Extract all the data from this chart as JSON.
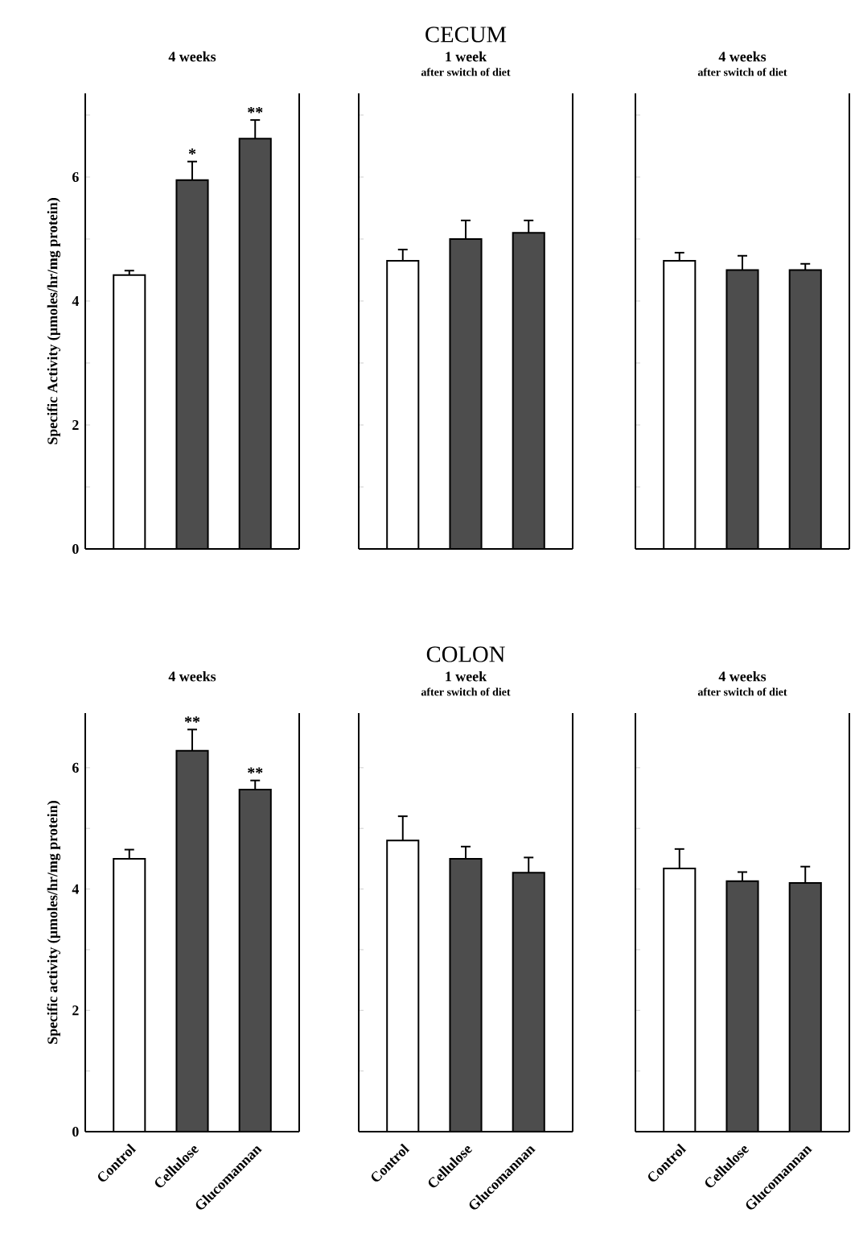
{
  "chart_data": [
    {
      "type": "bar",
      "title": "4 weeks",
      "ylabel": "Specific Activity (µmoles/hr/mg protein)",
      "categories": [
        "Control",
        "Cellulose",
        "Glucomannan"
      ],
      "values": [
        4.42,
        5.95,
        6.62
      ],
      "errors": [
        0.07,
        0.3,
        0.3
      ],
      "colors": [
        "#ffffff",
        "#4d4d4d",
        "#4d4d4d"
      ],
      "ylim": [
        0,
        7.35
      ],
      "yticks": [
        0,
        {
          "value": 1,
          "label": null
        },
        2,
        {
          "value": 3,
          "label": null
        },
        4,
        {
          "value": 5,
          "label": null
        },
        6,
        {
          "value": 7,
          "label": null
        }
      ],
      "tick_labels": "y",
      "annotations": [
        {
          "text": "*",
          "x": "Cellulose",
          "y": 6.25
        },
        {
          "text": "**",
          "x": "Glucomannan",
          "y": 6.92
        }
      ]
    },
    {
      "type": "bar",
      "title": "1 week",
      "subtitle": "after switch of diet",
      "categories": [
        "Control",
        "Cellulose",
        "Glucomannan"
      ],
      "values": [
        4.65,
        5.0,
        5.1
      ],
      "errors": [
        0.18,
        0.3,
        0.2
      ],
      "colors": [
        "#ffffff",
        "#4d4d4d",
        "#4d4d4d"
      ],
      "ylim": [
        0,
        7.35
      ],
      "yticks": [
        0,
        {
          "value": 1,
          "label": null
        },
        2,
        {
          "value": 3,
          "label": null
        },
        4,
        {
          "value": 5,
          "label": null
        },
        6,
        {
          "value": 7,
          "label": null
        }
      ],
      "tick_labels": false,
      "annotations": [
        "CECUM"
      ]
    },
    {
      "type": "bar",
      "title": "4 weeks",
      "subtitle": "after switch of diet",
      "categories": [
        "Control",
        "Cellulose",
        "Glucomannan"
      ],
      "values": [
        4.65,
        4.5,
        4.5
      ],
      "errors": [
        0.13,
        0.23,
        0.1
      ],
      "colors": [
        "#ffffff",
        "#4d4d4d",
        "#4d4d4d"
      ],
      "ylim": [
        0,
        7.35
      ],
      "yticks": [
        0,
        {
          "value": 1,
          "label": null
        },
        2,
        {
          "value": 3,
          "label": null
        },
        4,
        {
          "value": 5,
          "label": null
        },
        6,
        {
          "value": 7,
          "label": null
        }
      ],
      "tick_labels": false
    },
    {
      "type": "bar",
      "title": "4 weeks",
      "ylabel": "Specific activity (µmoles/hr/mg protein)",
      "categories": [
        "Control",
        "Cellulose",
        "Glucomannan"
      ],
      "values": [
        4.5,
        6.28,
        5.64
      ],
      "errors": [
        0.15,
        0.35,
        0.15
      ],
      "colors": [
        "#ffffff",
        "#4d4d4d",
        "#4d4d4d"
      ],
      "ylim": [
        0,
        6.9
      ],
      "yticks": [
        0,
        {
          "value": 1,
          "label": null
        },
        2,
        {
          "value": 3,
          "label": null
        },
        4,
        {
          "value": 5,
          "label": null
        },
        6
      ],
      "annotations": [
        {
          "text": "**",
          "x": "Cellulose",
          "y": 6.63
        },
        {
          "text": "**",
          "x": "Glucomannan",
          "y": 5.79
        }
      ]
    },
    {
      "type": "bar",
      "title": "1 week",
      "subtitle": "after switch of diet",
      "categories": [
        "Control",
        "Cellulose",
        "Glucomannan"
      ],
      "values": [
        4.8,
        4.5,
        4.27
      ],
      "errors": [
        0.4,
        0.2,
        0.25
      ],
      "colors": [
        "#ffffff",
        "#4d4d4d",
        "#4d4d4d"
      ],
      "ylim": [
        0,
        6.9
      ],
      "yticks": [
        0,
        {
          "value": 1,
          "label": null
        },
        2,
        {
          "value": 3,
          "label": null
        },
        4,
        {
          "value": 5,
          "label": null
        },
        6
      ],
      "tick_labels": "x",
      "annotations": [
        "COLON"
      ]
    },
    {
      "type": "bar",
      "title": "4 weeks",
      "subtitle": "after switch of diet",
      "categories": [
        "Control",
        "Cellulose",
        "Glucomannan"
      ],
      "values": [
        4.34,
        4.13,
        4.1
      ],
      "errors": [
        0.32,
        0.15,
        0.27
      ],
      "colors": [
        "#ffffff",
        "#4d4d4d",
        "#4d4d4d"
      ],
      "ylim": [
        0,
        6.9
      ],
      "yticks": [
        0,
        {
          "value": 1,
          "label": null
        },
        2,
        {
          "value": 3,
          "label": null
        },
        4,
        {
          "value": 5,
          "label": null
        },
        6
      ],
      "tick_labels": "x"
    }
  ]
}
